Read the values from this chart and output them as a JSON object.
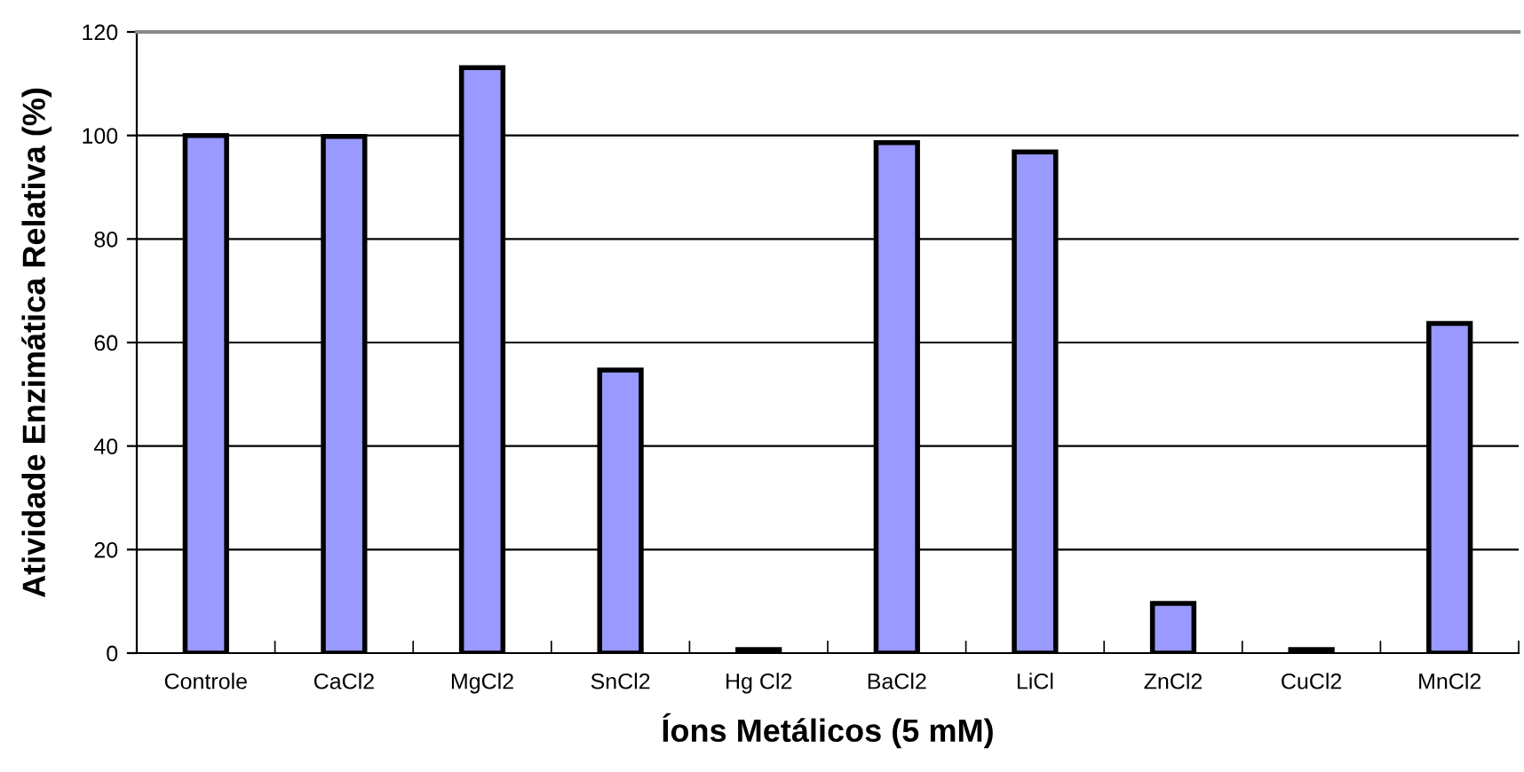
{
  "chart_data": {
    "type": "bar",
    "xlabel": "Íons Metálicos (5 mM)",
    "ylabel": "Atividade Enzimática Relativa (%)",
    "categories": [
      "Controle",
      "CaCl2",
      "MgCl2",
      "SnCl2",
      "Hg Cl2",
      "BaCl2",
      "LiCl",
      "ZnCl2",
      "CuCl2",
      "MnCl2"
    ],
    "values": [
      100,
      99.8,
      113.1,
      54.7,
      0.7,
      98.6,
      96.8,
      9.6,
      0.7,
      63.7
    ],
    "color": "#9999ff",
    "ylim": [
      0,
      120
    ],
    "yticks": [
      0,
      20,
      40,
      60,
      80,
      100,
      120
    ],
    "grid": "y",
    "legend": false
  }
}
